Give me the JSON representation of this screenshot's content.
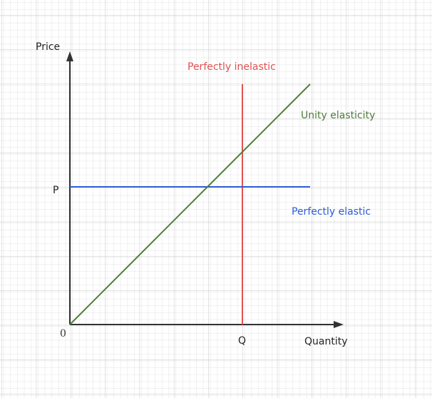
{
  "axes": {
    "y_label": "Price",
    "x_label": "Quantity",
    "origin": "0",
    "p_label": "P",
    "q_label": "Q"
  },
  "curves": [
    {
      "label": "Perfectly inelastic"
    },
    {
      "label": "Unity elasticity"
    },
    {
      "label": "Perfectly elastic"
    }
  ]
}
